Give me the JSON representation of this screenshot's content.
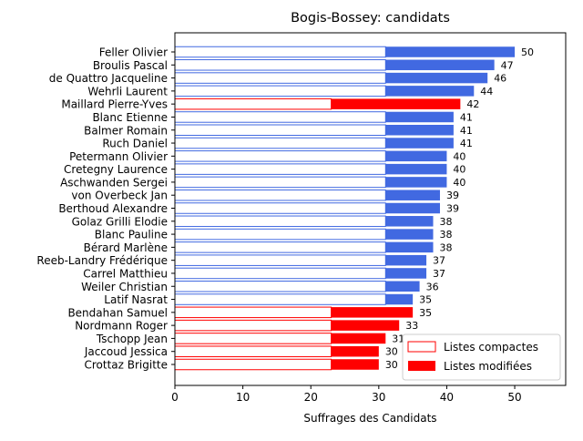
{
  "chart_data": {
    "type": "bar",
    "orientation": "horizontal",
    "stacked": true,
    "title": "Bogis-Bossey: candidats",
    "xlabel": "Suffrages des Candidats",
    "ylabel": "",
    "xlim": [
      0,
      57.5
    ],
    "xticks": [
      "0",
      "10",
      "20",
      "30",
      "40",
      "50"
    ],
    "grid": false,
    "legend_position": "lower-right",
    "categories": [
      "Feller Olivier",
      "Broulis Pascal",
      "de Quattro Jacqueline",
      "Wehrli Laurent",
      "Maillard Pierre-Yves",
      "Blanc Etienne",
      "Balmer Romain",
      "Ruch Daniel",
      "Petermann Olivier",
      "Cretegny Laurence",
      "Aschwanden Sergei",
      "von Overbeck Jan",
      "Berthoud Alexandre",
      "Golaz Grilli Elodie",
      "Blanc Pauline",
      "Bérard Marlène",
      "Reeb-Landry Frédérique",
      "Carrel Matthieu",
      "Weiler Christian",
      "Latif Nasrat",
      "Bendahan Samuel",
      "Nordmann Roger",
      "Tschopp Jean",
      "Jaccoud Jessica",
      "Crottaz Brigitte"
    ],
    "colors": [
      "#4169e1",
      "#4169e1",
      "#4169e1",
      "#4169e1",
      "#ff0000",
      "#4169e1",
      "#4169e1",
      "#4169e1",
      "#4169e1",
      "#4169e1",
      "#4169e1",
      "#4169e1",
      "#4169e1",
      "#4169e1",
      "#4169e1",
      "#4169e1",
      "#4169e1",
      "#4169e1",
      "#4169e1",
      "#4169e1",
      "#ff0000",
      "#ff0000",
      "#ff0000",
      "#ff0000",
      "#ff0000"
    ],
    "series": [
      {
        "name": "Listes compactes",
        "style": "outline",
        "values": [
          31,
          31,
          31,
          31,
          23,
          31,
          31,
          31,
          31,
          31,
          31,
          31,
          31,
          31,
          31,
          31,
          31,
          31,
          31,
          31,
          23,
          23,
          23,
          23,
          23
        ]
      },
      {
        "name": "Listes modifiées",
        "style": "filled",
        "values": [
          19,
          16,
          15,
          13,
          19,
          10,
          10,
          10,
          9,
          9,
          9,
          8,
          8,
          7,
          7,
          7,
          6,
          6,
          5,
          4,
          12,
          10,
          8,
          7,
          7
        ]
      }
    ],
    "totals": [
      "50",
      "47",
      "46",
      "44",
      "42",
      "41",
      "41",
      "41",
      "40",
      "40",
      "40",
      "39",
      "39",
      "38",
      "38",
      "38",
      "37",
      "37",
      "36",
      "35",
      "35",
      "33",
      "31",
      "30",
      "30"
    ]
  }
}
